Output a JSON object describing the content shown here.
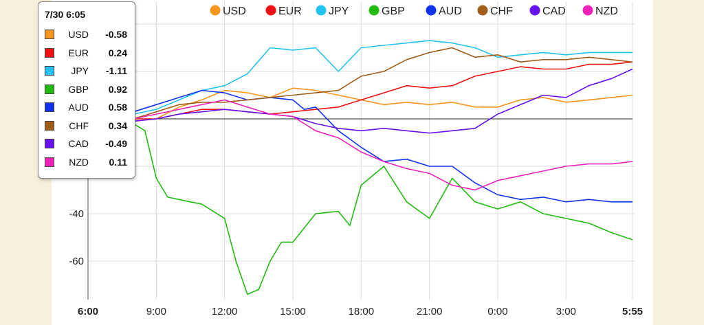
{
  "tooltip": {
    "title": "7/30 6:05",
    "rows": [
      {
        "name": "USD",
        "value": "-0.58",
        "color": "#f7941d"
      },
      {
        "name": "EUR",
        "value": "0.24",
        "color": "#ee1111"
      },
      {
        "name": "JPY",
        "value": "-1.11",
        "color": "#22c3ee"
      },
      {
        "name": "GBP",
        "value": "0.92",
        "color": "#22bb11"
      },
      {
        "name": "AUD",
        "value": "0.58",
        "color": "#1133ee"
      },
      {
        "name": "CHF",
        "value": "0.34",
        "color": "#a05e1a"
      },
      {
        "name": "CAD",
        "value": "-0.49",
        "color": "#6611ee"
      },
      {
        "name": "NZD",
        "value": "0.11",
        "color": "#ee22bb"
      }
    ]
  },
  "chart_data": {
    "type": "line",
    "title": "",
    "xlabel": "",
    "ylabel": "",
    "ylim": [
      -75,
      40
    ],
    "yticks": [
      40,
      20,
      0,
      -20,
      -40,
      -60
    ],
    "x_tick_labels": [
      "6:00",
      "9:00",
      "12:00",
      "15:00",
      "18:00",
      "21:00",
      "0:00",
      "3:00",
      "5:55"
    ],
    "x_hours": [
      0,
      3,
      6,
      9,
      12,
      15,
      18,
      21,
      23.92
    ],
    "grid": true,
    "legend_position": "top",
    "series": [
      {
        "name": "USD",
        "color": "#f7941d",
        "points": [
          [
            0,
            0
          ],
          [
            1,
            -1
          ],
          [
            2,
            -1
          ],
          [
            3,
            0
          ],
          [
            4,
            5
          ],
          [
            5,
            8
          ],
          [
            6,
            12
          ],
          [
            7,
            11
          ],
          [
            8,
            9
          ],
          [
            9,
            13
          ],
          [
            10,
            12
          ],
          [
            11,
            10
          ],
          [
            12,
            8
          ],
          [
            13,
            6
          ],
          [
            14,
            7
          ],
          [
            15,
            6
          ],
          [
            16,
            7
          ],
          [
            17,
            5
          ],
          [
            18,
            5
          ],
          [
            19,
            8
          ],
          [
            20,
            9
          ],
          [
            21,
            7
          ],
          [
            22,
            8
          ],
          [
            23,
            9
          ],
          [
            23.92,
            10
          ]
        ]
      },
      {
        "name": "EUR",
        "color": "#ee1111",
        "points": [
          [
            0,
            0
          ],
          [
            1,
            -1
          ],
          [
            2,
            0
          ],
          [
            3,
            0
          ],
          [
            4,
            2
          ],
          [
            5,
            4
          ],
          [
            6,
            4
          ],
          [
            7,
            3
          ],
          [
            8,
            2
          ],
          [
            9,
            3
          ],
          [
            10,
            4
          ],
          [
            11,
            5
          ],
          [
            12,
            8
          ],
          [
            13,
            11
          ],
          [
            14,
            14
          ],
          [
            15,
            13
          ],
          [
            16,
            14
          ],
          [
            17,
            18
          ],
          [
            18,
            20
          ],
          [
            19,
            22
          ],
          [
            20,
            21
          ],
          [
            21,
            21
          ],
          [
            22,
            23
          ],
          [
            23,
            23
          ],
          [
            23.92,
            24
          ]
        ]
      },
      {
        "name": "JPY",
        "color": "#22c3ee",
        "points": [
          [
            0,
            -3
          ],
          [
            1,
            -9
          ],
          [
            1.5,
            -5
          ],
          [
            2,
            2
          ],
          [
            3,
            4
          ],
          [
            4,
            8
          ],
          [
            5,
            12
          ],
          [
            6,
            14
          ],
          [
            7,
            19
          ],
          [
            8,
            30
          ],
          [
            9,
            29
          ],
          [
            10,
            30
          ],
          [
            11,
            20
          ],
          [
            12,
            30
          ],
          [
            13,
            31
          ],
          [
            14,
            32
          ],
          [
            15,
            33
          ],
          [
            16,
            32
          ],
          [
            17,
            30
          ],
          [
            18,
            26
          ],
          [
            19,
            27
          ],
          [
            20,
            28
          ],
          [
            21,
            27
          ],
          [
            22,
            28
          ],
          [
            23,
            28
          ],
          [
            23.92,
            28
          ]
        ]
      },
      {
        "name": "GBP",
        "color": "#22bb11",
        "points": [
          [
            0,
            4
          ],
          [
            1,
            2
          ],
          [
            2,
            -2
          ],
          [
            2.5,
            -5
          ],
          [
            3,
            -25
          ],
          [
            3.5,
            -33
          ],
          [
            4,
            -34
          ],
          [
            5,
            -36
          ],
          [
            6,
            -42
          ],
          [
            6.5,
            -60
          ],
          [
            7,
            -74
          ],
          [
            7.5,
            -72
          ],
          [
            8,
            -60
          ],
          [
            8.5,
            -52
          ],
          [
            9,
            -52
          ],
          [
            10,
            -40
          ],
          [
            11,
            -39
          ],
          [
            11.5,
            -45
          ],
          [
            12,
            -28
          ],
          [
            13,
            -20
          ],
          [
            14,
            -35
          ],
          [
            15,
            -42
          ],
          [
            16,
            -25
          ],
          [
            17,
            -35
          ],
          [
            18,
            -38
          ],
          [
            19,
            -35
          ],
          [
            20,
            -40
          ],
          [
            21,
            -42
          ],
          [
            22,
            -44
          ],
          [
            23,
            -48
          ],
          [
            23.92,
            -51
          ]
        ]
      },
      {
        "name": "AUD",
        "color": "#1133ee",
        "points": [
          [
            0,
            0
          ],
          [
            1,
            2
          ],
          [
            2,
            3
          ],
          [
            3,
            6
          ],
          [
            4,
            9
          ],
          [
            5,
            12
          ],
          [
            6,
            11
          ],
          [
            7,
            8
          ],
          [
            8,
            9
          ],
          [
            9,
            8
          ],
          [
            9.5,
            4
          ],
          [
            10,
            5
          ],
          [
            11,
            -5
          ],
          [
            12,
            -12
          ],
          [
            13,
            -18
          ],
          [
            14,
            -17
          ],
          [
            15,
            -20
          ],
          [
            16,
            -20
          ],
          [
            17,
            -27
          ],
          [
            18,
            -32
          ],
          [
            19,
            -34
          ],
          [
            20,
            -33
          ],
          [
            21,
            -35
          ],
          [
            22,
            -34
          ],
          [
            23,
            -35
          ],
          [
            23.92,
            -35
          ]
        ]
      },
      {
        "name": "CHF",
        "color": "#a05e1a",
        "points": [
          [
            0,
            0
          ],
          [
            1,
            -1
          ],
          [
            2,
            0
          ],
          [
            3,
            3
          ],
          [
            4,
            6
          ],
          [
            5,
            7
          ],
          [
            6,
            7
          ],
          [
            7,
            8
          ],
          [
            8,
            9
          ],
          [
            9,
            10
          ],
          [
            10,
            11
          ],
          [
            11,
            12
          ],
          [
            12,
            18
          ],
          [
            13,
            20
          ],
          [
            14,
            25
          ],
          [
            15,
            28
          ],
          [
            16,
            30
          ],
          [
            17,
            26
          ],
          [
            18,
            27
          ],
          [
            19,
            24
          ],
          [
            20,
            25
          ],
          [
            21,
            25
          ],
          [
            22,
            26
          ],
          [
            23,
            25
          ],
          [
            23.92,
            24
          ]
        ]
      },
      {
        "name": "CAD",
        "color": "#6611ee",
        "points": [
          [
            0,
            0
          ],
          [
            1,
            -1
          ],
          [
            2,
            -1
          ],
          [
            3,
            0
          ],
          [
            4,
            2
          ],
          [
            5,
            3
          ],
          [
            6,
            4
          ],
          [
            7,
            3
          ],
          [
            8,
            2
          ],
          [
            9,
            1
          ],
          [
            10,
            -2
          ],
          [
            11,
            -4
          ],
          [
            12,
            -5
          ],
          [
            13,
            -4
          ],
          [
            14,
            -5
          ],
          [
            15,
            -6
          ],
          [
            16,
            -5
          ],
          [
            17,
            -4
          ],
          [
            18,
            2
          ],
          [
            19,
            6
          ],
          [
            20,
            10
          ],
          [
            21,
            9
          ],
          [
            22,
            14
          ],
          [
            23,
            17
          ],
          [
            23.92,
            21
          ]
        ]
      },
      {
        "name": "NZD",
        "color": "#ee22bb",
        "points": [
          [
            0,
            -1
          ],
          [
            1,
            0
          ],
          [
            2,
            0
          ],
          [
            3,
            2
          ],
          [
            4,
            4
          ],
          [
            5,
            6
          ],
          [
            6,
            8
          ],
          [
            7,
            5
          ],
          [
            8,
            2
          ],
          [
            9,
            1
          ],
          [
            10,
            -5
          ],
          [
            11,
            -8
          ],
          [
            12,
            -14
          ],
          [
            13,
            -18
          ],
          [
            14,
            -21
          ],
          [
            15,
            -23
          ],
          [
            16,
            -28
          ],
          [
            17,
            -30
          ],
          [
            18,
            -26
          ],
          [
            19,
            -24
          ],
          [
            20,
            -22
          ],
          [
            21,
            -20
          ],
          [
            22,
            -19
          ],
          [
            23,
            -19
          ],
          [
            23.92,
            -18
          ]
        ]
      }
    ]
  }
}
